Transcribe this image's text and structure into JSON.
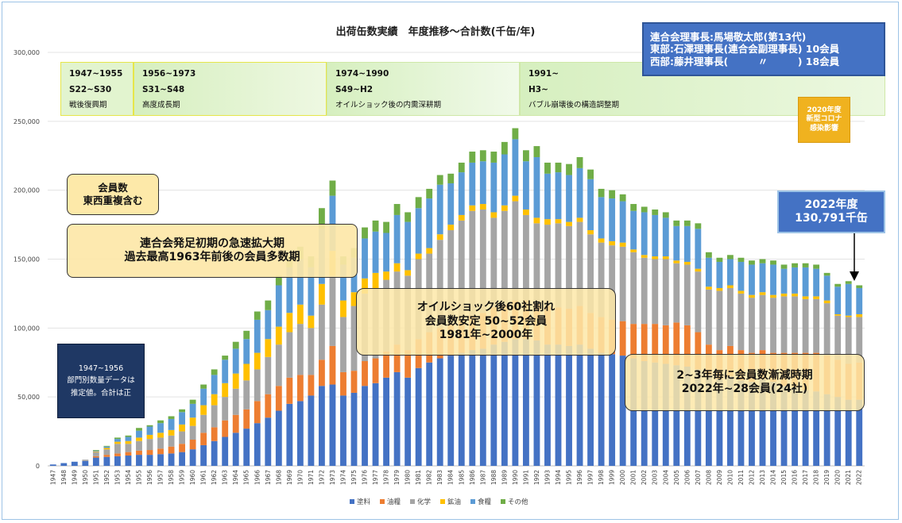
{
  "chart_data": {
    "type": "bar",
    "stacked": true,
    "title": "出荷缶数実績　年度推移～合計数(千缶/年)",
    "ylim": [
      0,
      300000
    ],
    "yticks": [
      "0",
      "50,000",
      "100,000",
      "150,000",
      "200,000",
      "250,000",
      "300,000"
    ],
    "grid": true,
    "legend_position": "bottom",
    "categories": [
      "1947",
      "1948",
      "1949",
      "1950",
      "1951",
      "1952",
      "1953",
      "1954",
      "1955",
      "1956",
      "1957",
      "1958",
      "1959",
      "1960",
      "1961",
      "1962",
      "1963",
      "1964",
      "1965",
      "1966",
      "1967",
      "1968",
      "1969",
      "1970",
      "1971",
      "1972",
      "1973",
      "1974",
      "1975",
      "1976",
      "1977",
      "1978",
      "1979",
      "1980",
      "1981",
      "1982",
      "1983",
      "1984",
      "1985",
      "1986",
      "1987",
      "1988",
      "1989",
      "1990",
      "1991",
      "1992",
      "1993",
      "1994",
      "1995",
      "1996",
      "1997",
      "1998",
      "1999",
      "2000",
      "2001",
      "2002",
      "2003",
      "2004",
      "2005",
      "2006",
      "2007",
      "2008",
      "2009",
      "2010",
      "2011",
      "2012",
      "2013",
      "2014",
      "2015",
      "2016",
      "2017",
      "2018",
      "2019",
      "2020",
      "2021",
      "2022"
    ],
    "series": [
      {
        "name": "塗料",
        "color": "#4472c4",
        "values": [
          1000,
          2000,
          3000,
          3500,
          6000,
          6500,
          7000,
          7500,
          8000,
          8000,
          8500,
          9000,
          10000,
          12000,
          15000,
          18000,
          21000,
          24000,
          27000,
          31000,
          35000,
          40000,
          45000,
          47000,
          51000,
          58000,
          59000,
          51000,
          53000,
          58000,
          60000,
          64000,
          68000,
          64000,
          71000,
          75000,
          78000,
          80000,
          82000,
          84000,
          85000,
          88000,
          90000,
          92000,
          92000,
          91000,
          88000,
          88000,
          87000,
          88000,
          85000,
          82000,
          81000,
          80000,
          78000,
          76000,
          75000,
          74000,
          73000,
          72000,
          70000,
          66000,
          63000,
          65000,
          62000,
          61000,
          63000,
          61000,
          58000,
          57000,
          55000,
          54000,
          52000,
          50000,
          48000,
          48000
        ]
      },
      {
        "name": "油糧",
        "color": "#ed7d31",
        "values": [
          0,
          0,
          0,
          0,
          1000,
          1500,
          2000,
          2500,
          3000,
          3500,
          4000,
          5000,
          6000,
          7000,
          9000,
          10000,
          12000,
          13000,
          14000,
          16000,
          17000,
          18000,
          19000,
          19000,
          15000,
          19000,
          28000,
          17000,
          16000,
          18000,
          18000,
          19000,
          20000,
          20000,
          21000,
          22000,
          22000,
          23000,
          24000,
          25000,
          26000,
          27000,
          27000,
          28000,
          28000,
          27000,
          28000,
          27000,
          27000,
          28000,
          26000,
          26000,
          25000,
          25000,
          25000,
          27000,
          28000,
          28000,
          31000,
          30000,
          27000,
          22000,
          21000,
          22000,
          22000,
          21000,
          21000,
          21000,
          24000,
          25000,
          27000,
          28000,
          28000,
          27000,
          26000,
          27000
        ]
      },
      {
        "name": "化学",
        "color": "#a5a5a5",
        "values": [
          0,
          0,
          0,
          1000,
          3000,
          4000,
          7000,
          6000,
          7000,
          8000,
          8000,
          8000,
          9000,
          10000,
          13000,
          16000,
          17000,
          19000,
          21000,
          23000,
          27000,
          30000,
          33000,
          37000,
          34000,
          40000,
          51000,
          40000,
          47000,
          49000,
          51000,
          52000,
          53000,
          54000,
          58000,
          57000,
          64000,
          68000,
          72000,
          76000,
          75000,
          65000,
          68000,
          72000,
          62000,
          58000,
          59000,
          61000,
          60000,
          61000,
          57000,
          54000,
          54000,
          54000,
          52000,
          48000,
          47000,
          48000,
          43000,
          44000,
          44000,
          40000,
          43000,
          42000,
          41000,
          40000,
          40000,
          40000,
          41000,
          41000,
          39000,
          39000,
          38000,
          32000,
          34000,
          33000
        ]
      },
      {
        "name": "鉱油",
        "color": "#ffc000",
        "values": [
          0,
          0,
          0,
          0,
          500,
          1000,
          1500,
          2000,
          2500,
          3000,
          3500,
          4000,
          5000,
          6000,
          7000,
          8000,
          10000,
          11000,
          12000,
          12000,
          13000,
          13000,
          14000,
          14000,
          9000,
          15000,
          18000,
          12000,
          10000,
          11000,
          11000,
          6000,
          6000,
          4000,
          4000,
          4000,
          4000,
          4000,
          4000,
          4000,
          4000,
          4000,
          4000,
          4000,
          4000,
          4000,
          4000,
          3000,
          3000,
          3000,
          3000,
          3000,
          3000,
          3000,
          2000,
          2000,
          2000,
          2000,
          2000,
          2000,
          2000,
          2000,
          2000,
          2000,
          2000,
          2000,
          2000,
          2000,
          2000,
          2000,
          2000,
          2000,
          2000,
          1000,
          1000,
          2000
        ]
      },
      {
        "name": "食糧",
        "color": "#5b9bd5",
        "values": [
          0,
          0,
          0,
          0,
          500,
          1000,
          2000,
          3000,
          5000,
          6000,
          7000,
          8000,
          9000,
          10000,
          12000,
          14000,
          17000,
          18000,
          18000,
          24000,
          21000,
          30000,
          33000,
          33000,
          35000,
          40000,
          40000,
          26000,
          25000,
          29000,
          30000,
          28000,
          35000,
          35000,
          33000,
          36000,
          36000,
          30000,
          31000,
          31000,
          31000,
          36000,
          37000,
          41000,
          35000,
          44000,
          33000,
          34000,
          34000,
          36000,
          37000,
          30000,
          31000,
          30000,
          28000,
          31000,
          30000,
          28000,
          25000,
          26000,
          29000,
          21000,
          19000,
          19000,
          21000,
          22000,
          21000,
          22000,
          18000,
          19000,
          21000,
          20000,
          18000,
          20000,
          23000,
          19000
        ]
      },
      {
        "name": "その他",
        "color": "#70ad47",
        "values": [
          0,
          0,
          0,
          0,
          500,
          500,
          1000,
          1000,
          2000,
          1000,
          2000,
          2000,
          2000,
          3000,
          3000,
          4000,
          3000,
          5000,
          6000,
          6000,
          7000,
          7000,
          8000,
          9000,
          8000,
          15000,
          11000,
          6000,
          7000,
          8000,
          8000,
          8000,
          8000,
          7000,
          8000,
          7000,
          7000,
          7000,
          7000,
          8000,
          8000,
          8000,
          9000,
          8000,
          8000,
          8000,
          8000,
          7000,
          8000,
          8000,
          7000,
          6000,
          6000,
          5000,
          5000,
          4000,
          4000,
          4000,
          4000,
          4000,
          4000,
          4000,
          3000,
          3000,
          3000,
          3000,
          3000,
          3000,
          3000,
          3000,
          3000,
          3000,
          2000,
          2000,
          2000,
          2000
        ]
      }
    ]
  },
  "boxes": {
    "leaders": [
      "連合会理事長:馬場敬太郎(第13代)",
      "東部:石澤理事長(連合会副理事長) 10会員",
      "西部:藤井理事長(　　　〃　　　) 18会員"
    ],
    "covid": [
      "2020年度",
      "新型コロナ",
      "感染影響"
    ],
    "latest": [
      "2022年度",
      "130,791千缶"
    ],
    "members": [
      "会員数",
      "東西重複含む"
    ],
    "expansion": [
      "連合会発足初期の急速拡大期",
      "過去最高1963年前後の会員多数期"
    ],
    "oil": [
      "オイルショック後60社割れ",
      "会員数安定 50~52会員",
      "1981年~2000年"
    ],
    "decline": [
      "2~3年毎に会員数漸減時期",
      "2022年~28会員(24社)"
    ],
    "estimate": [
      "1947~1956",
      "部門別数量データは",
      "推定値。合計は正"
    ]
  },
  "periods": [
    {
      "years": "1947~1955",
      "era": "S22~S30",
      "label": "戦後復興期"
    },
    {
      "years": "1956~1973",
      "era": "S31~S48",
      "label": "高度成長期"
    },
    {
      "years": "1974~1990",
      "era": "S49~H2",
      "label": "オイルショック後の内需深耕期"
    },
    {
      "years": "1991~",
      "era": "H3~",
      "label": "バブル崩壊後の構造調整期"
    }
  ]
}
